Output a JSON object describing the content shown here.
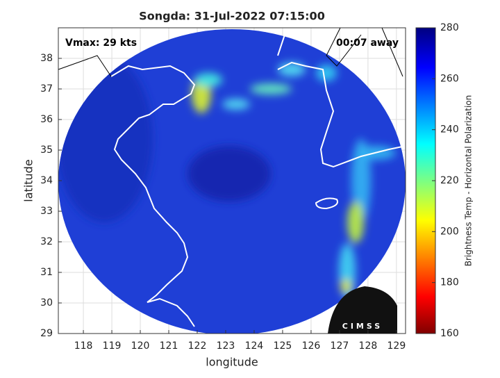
{
  "map": {
    "title": "Songda: 31-Jul-2022 07:15:00",
    "annotations": [
      "Vmax: 29 kts",
      "00:07 away"
    ],
    "xlabel": "longitude",
    "ylabel": "latitude",
    "xlim": [
      117.12,
      129.32
    ],
    "xticks": [
      118,
      119,
      120,
      121,
      122,
      123,
      124,
      125,
      126,
      127,
      128,
      129
    ],
    "ylim": [
      29,
      39
    ],
    "yticks": [
      29,
      30,
      31,
      32,
      33,
      34,
      35,
      36,
      37,
      38
    ],
    "grid": true,
    "colorbar": {
      "label": "Brightness Temp - Horizontal Polarization",
      "lim": [
        160,
        280
      ],
      "ticks": [
        160,
        180,
        200,
        220,
        240,
        260,
        280
      ]
    },
    "logo": "CIMSS"
  }
}
